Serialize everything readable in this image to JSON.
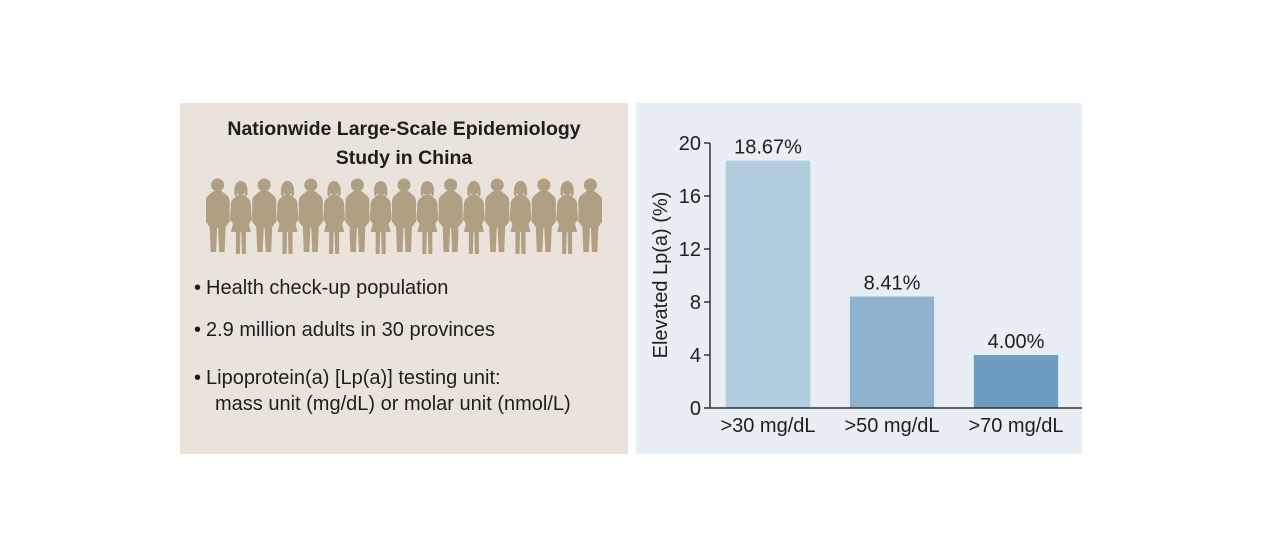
{
  "study": {
    "title_line1": "Nationwide Large-Scale Epidemiology",
    "title_line2": "Study in China",
    "bullets": [
      {
        "lines": [
          "Health check-up population"
        ]
      },
      {
        "lines": [
          "2.9 million adults in 30 provinces"
        ]
      },
      {
        "lines": [
          "Lipoprotein(a) [Lp(a)] testing unit:",
          "mass unit (mg/dL) or molar unit (nmol/L)"
        ]
      }
    ]
  },
  "colors": {
    "left_background": "#e9e3db",
    "right_background": "#e8eef3",
    "people_silhouette": "#b09f82"
  },
  "icons": [
    "people-crowd-icon"
  ],
  "chart_data": {
    "type": "bar",
    "categories": [
      ">30 mg/dL",
      ">50 mg/dL",
      ">70 mg/dL"
    ],
    "values": [
      18.67,
      8.41,
      4.0
    ],
    "data_labels": [
      "18.67%",
      "8.41%",
      "4.00%"
    ],
    "ylabel": "Elevated Lp(a) (%)",
    "xlabel": "",
    "title": "",
    "ylim": [
      0,
      20
    ],
    "yticks": [
      0,
      4,
      8,
      12,
      16,
      20
    ],
    "bar_colors": [
      "#b2cdde",
      "#8eb3cf",
      "#6c9cc0"
    ],
    "grid": false,
    "legend": "none"
  }
}
